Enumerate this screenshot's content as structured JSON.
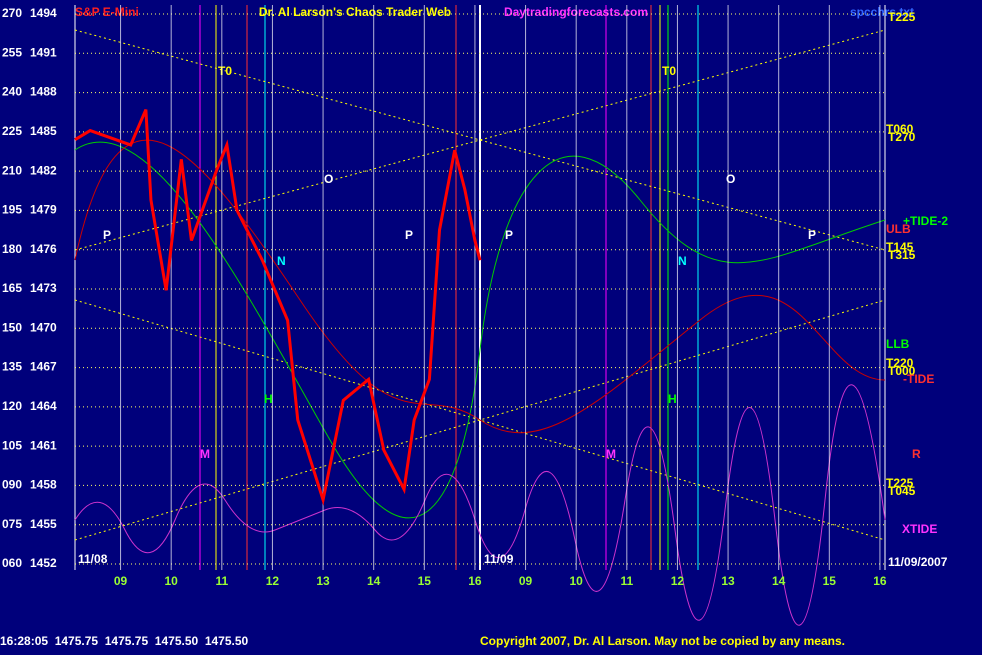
{
  "header": {
    "title": "S&P E-Mini",
    "author": "Dr. Al Larson's Chaos Trader Web",
    "site": "Daytradingforecasts.com",
    "file": "spcchrs.txt"
  },
  "footer": {
    "quote": "16:28:05  1475.75  1475.75  1475.50  1475.50",
    "copyright": "Copyright 2007, Dr. Al Larson. May not be copied by any means."
  },
  "chart_data": {
    "type": "line",
    "xlim": [
      -0.9,
      15.1
    ],
    "xticks": [
      {
        "value": 0,
        "label": "09"
      },
      {
        "value": 1,
        "label": "10"
      },
      {
        "value": 2,
        "label": "11"
      },
      {
        "value": 3,
        "label": "12"
      },
      {
        "value": 4,
        "label": "13"
      },
      {
        "value": 5,
        "label": "14"
      },
      {
        "value": 6,
        "label": "15"
      },
      {
        "value": 7,
        "label": "16"
      },
      {
        "value": 8,
        "label": "09"
      },
      {
        "value": 9,
        "label": "10"
      },
      {
        "value": 10,
        "label": "11"
      },
      {
        "value": 11,
        "label": "12"
      },
      {
        "value": 12,
        "label": "13"
      },
      {
        "value": 13,
        "label": "14"
      },
      {
        "value": 14,
        "label": "15"
      },
      {
        "value": 15,
        "label": "16"
      }
    ],
    "ylim": [
      1452,
      1494
    ],
    "yticks": [
      1494,
      1491,
      1488,
      1485,
      1482,
      1479,
      1476,
      1473,
      1470,
      1467,
      1464,
      1461,
      1458,
      1455,
      1452
    ],
    "y2lim": [
      60,
      270
    ],
    "y2ticks": [
      270,
      255,
      240,
      225,
      210,
      195,
      180,
      165,
      150,
      135,
      120,
      105,
      {
        "value": 90,
        "label": "090"
      },
      {
        "value": 75,
        "label": "075"
      },
      {
        "value": 60,
        "label": "060"
      }
    ],
    "grid": true,
    "dates": [
      "11/08",
      "11/09",
      "11/09/2007"
    ],
    "series": [
      {
        "name": "S&P E-Mini",
        "color": "#ff0000",
        "x": [
          -0.9,
          -0.6,
          0.2,
          0.5,
          0.6,
          0.9,
          1.2,
          1.4,
          1.9,
          2.1,
          2.3,
          2.8,
          3.3,
          3.5,
          4.0,
          4.4,
          4.9,
          5.2,
          5.6,
          5.8,
          6.1,
          6.3,
          6.6,
          6.8,
          7.0,
          7.1
        ],
        "values": [
          1484.4,
          1485.1,
          1484.0,
          1486.7,
          1479.8,
          1472.9,
          1482.9,
          1476.7,
          1482.1,
          1484.0,
          1479.0,
          1475.2,
          1470.6,
          1463.0,
          1456.9,
          1464.5,
          1466.1,
          1460.7,
          1457.7,
          1463.0,
          1466.1,
          1477.5,
          1483.6,
          1480.6,
          1476.7,
          1475.2
        ]
      }
    ],
    "annotations": [
      "T0",
      "T0",
      "P",
      "P",
      "P",
      "P",
      "O",
      "O",
      "N",
      "N",
      "H",
      "H",
      "M",
      "M",
      "T225",
      "T060",
      "T270",
      "ULB",
      "+TIDE-2",
      "T145",
      "T315",
      "LLB",
      "T220",
      "T000",
      "-TIDE",
      "R",
      "T225",
      "T045",
      "XTIDE"
    ]
  }
}
